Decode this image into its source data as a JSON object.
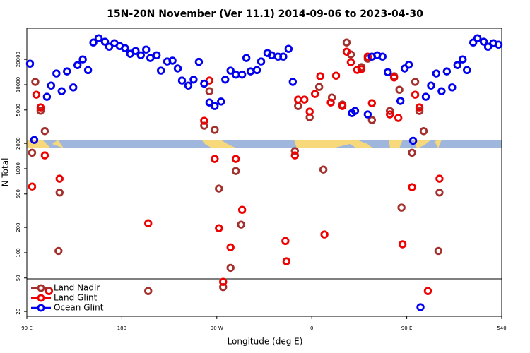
{
  "chart_data": {
    "type": "scatter",
    "title": "15N-20N November (Ver 11.1)   2014-09-06 to 2023-04-30",
    "x_label": "Longitude (deg E)",
    "y_label": "N Total",
    "log_y": true,
    "xlim": [
      90,
      540
    ],
    "xticks": [
      {
        "value": 90,
        "label": "90 E"
      },
      180,
      {
        "value": 270,
        "label": "90 W"
      },
      {
        "value": 360,
        "label": "0"
      },
      {
        "value": 450,
        "label": "90 E"
      },
      540
    ],
    "ylim": [
      17.5,
      47000
    ],
    "yticks": [
      20,
      50,
      100,
      200,
      500,
      1000,
      2000,
      5000,
      10000,
      20000
    ],
    "legend": "bottom-left",
    "series": [
      {
        "name": "Land Nadir",
        "color": "#a3302c",
        "x": [
          98,
          103,
          107,
          95,
          121,
          120,
          205,
          258,
          263,
          268,
          272,
          288,
          293,
          283,
          276,
          344,
          358,
          347,
          367,
          379,
          389,
          393,
          397,
          407,
          413,
          417,
          371,
          434,
          438,
          443,
          445,
          455,
          458,
          462,
          466,
          481,
          480
        ],
        "values": [
          10800,
          4900,
          2800,
          1550,
          520,
          105,
          35,
          3250,
          8370,
          2900,
          580,
          940,
          216,
          66,
          39,
          1620,
          4090,
          5570,
          9400,
          7030,
          5800,
          31800,
          22900,
          16200,
          20400,
          3790,
          977,
          4870,
          12600,
          8700,
          344,
          1550,
          10800,
          4870,
          2800,
          520,
          105
        ]
      },
      {
        "name": "Land Glint",
        "color": "#ee0000",
        "x": [
          95,
          99,
          103,
          107,
          121,
          111,
          205,
          258,
          263,
          268,
          272,
          288,
          294,
          283,
          276,
          335,
          336,
          344,
          347,
          353,
          358,
          363,
          368,
          372,
          378,
          383,
          389,
          393,
          397,
          403,
          407,
          413,
          417,
          434,
          438,
          442,
          446,
          455,
          458,
          462,
          470,
          481
        ],
        "values": [
          614,
          7600,
          5370,
          1440,
          760,
          35,
          224,
          3720,
          11200,
          1307,
          196,
          1307,
          324,
          116,
          45,
          138,
          79,
          1440,
          6640,
          6640,
          4780,
          7750,
          12600,
          165,
          6140,
          12800,
          5570,
          24700,
          18500,
          15000,
          15300,
          21600,
          6030,
          4430,
          12200,
          4020,
          126,
          603,
          7600,
          5370,
          35,
          760
        ]
      },
      {
        "name": "Ocean Glint",
        "color": "#0000ee",
        "x": [
          93,
          97,
          109,
          113,
          118,
          123,
          128,
          134,
          138,
          143,
          148,
          153,
          158,
          164,
          168,
          173,
          178,
          183,
          188,
          193,
          198,
          203,
          207,
          213,
          217,
          223,
          228,
          233,
          237,
          243,
          248,
          253,
          258,
          263,
          268,
          274,
          278,
          283,
          288,
          294,
          298,
          302,
          308,
          312,
          318,
          322,
          328,
          333,
          338,
          342,
          398,
          401,
          413,
          417,
          422,
          427,
          432,
          444,
          448,
          452,
          456,
          463,
          468,
          473,
          478,
          483,
          488,
          493,
          498,
          503,
          507,
          513,
          517,
          523,
          527,
          532,
          537
        ],
        "values": [
          17800,
          2200,
          7180,
          9770,
          13600,
          8370,
          14400,
          9280,
          17100,
          20000,
          14900,
          31800,
          35700,
          32500,
          28300,
          31200,
          28800,
          27200,
          23300,
          25200,
          22400,
          26200,
          20800,
          22400,
          14700,
          18900,
          19300,
          15600,
          11200,
          9770,
          11500,
          18700,
          10300,
          6140,
          5570,
          6300,
          11500,
          14700,
          13200,
          13200,
          20800,
          14400,
          14900,
          18900,
          23800,
          22400,
          21600,
          21600,
          26700,
          10800,
          4590,
          4870,
          4430,
          21600,
          22400,
          21600,
          14100,
          6400,
          15600,
          17300,
          2150,
          22.5,
          7180,
          9770,
          13600,
          8370,
          14400,
          9280,
          17100,
          20000,
          14900,
          31800,
          35700,
          32500,
          28300,
          31200,
          30000
        ]
      }
    ]
  }
}
